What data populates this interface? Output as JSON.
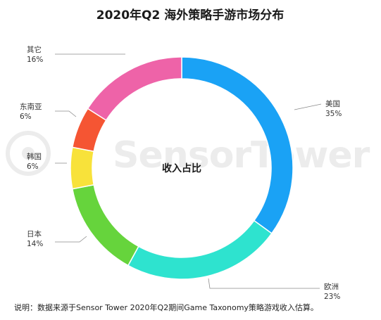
{
  "chart_data": {
    "type": "pie",
    "title": "2020年Q2 海外策略手游市场分布",
    "center_label": "收入占比",
    "slices": [
      {
        "name": "美国",
        "value": 35,
        "label": "35%",
        "color": "#1aa2f5"
      },
      {
        "name": "欧洲",
        "value": 23,
        "label": "23%",
        "color": "#2ee3cf"
      },
      {
        "name": "日本",
        "value": 14,
        "label": "14%",
        "color": "#66d43c"
      },
      {
        "name": "韩国",
        "value": 6,
        "label": "6%",
        "color": "#f8e23a"
      },
      {
        "name": "东南亚",
        "value": 6,
        "label": "6%",
        "color": "#f55533"
      },
      {
        "name": "其它",
        "value": 16,
        "label": "16%",
        "color": "#ee63a8"
      }
    ],
    "note": "说明：数据来源于Sensor Tower 2020年Q2期间Game Taxonomy策略游戏收入估算。"
  },
  "watermark": {
    "text": "SensorTower",
    "color": "#ececec"
  }
}
